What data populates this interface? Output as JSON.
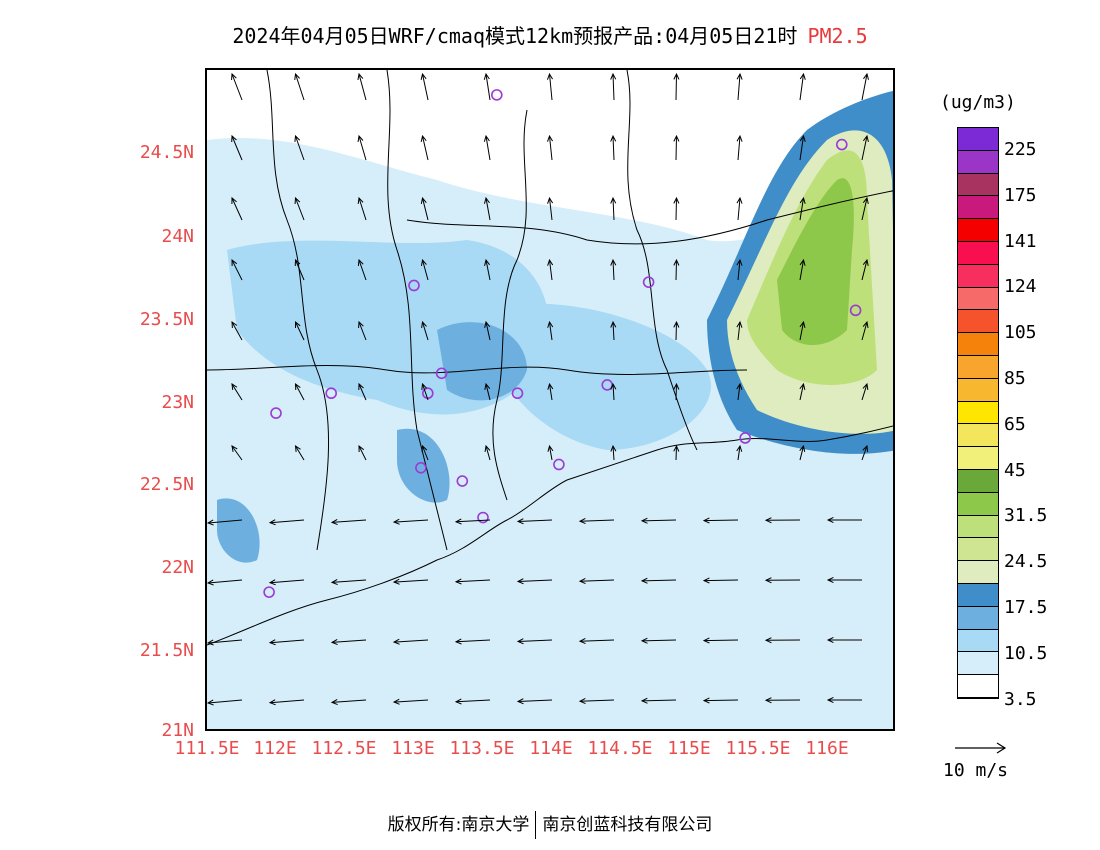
{
  "title": {
    "main": "2024年04月05日WRF/cmaq模式12km预报产品:04月05日21时",
    "variable": "PM2.5"
  },
  "map": {
    "lon_range": [
      111.5,
      116.5
    ],
    "lat_range": [
      21.0,
      25.0
    ],
    "lat_ticks": [
      "24.5N",
      "24N",
      "23.5N",
      "23N",
      "22.5N",
      "22N",
      "21.5N",
      "21N"
    ],
    "lon_ticks": [
      "111.5E",
      "112E",
      "112.5E",
      "113E",
      "113.5E",
      "114E",
      "114.5E",
      "115E",
      "115.5E",
      "116E"
    ],
    "stations": [
      {
        "lon": 113.6,
        "lat": 24.85
      },
      {
        "lon": 116.1,
        "lat": 24.55
      },
      {
        "lon": 113.0,
        "lat": 23.7
      },
      {
        "lon": 114.7,
        "lat": 23.72
      },
      {
        "lon": 116.2,
        "lat": 23.55
      },
      {
        "lon": 113.2,
        "lat": 23.17
      },
      {
        "lon": 112.4,
        "lat": 23.05
      },
      {
        "lon": 113.1,
        "lat": 23.05
      },
      {
        "lon": 113.75,
        "lat": 23.05
      },
      {
        "lon": 114.4,
        "lat": 23.1
      },
      {
        "lon": 112.0,
        "lat": 22.93
      },
      {
        "lon": 115.4,
        "lat": 22.78
      },
      {
        "lon": 113.05,
        "lat": 22.6
      },
      {
        "lon": 113.35,
        "lat": 22.52
      },
      {
        "lon": 114.05,
        "lat": 22.62
      },
      {
        "lon": 113.5,
        "lat": 22.3
      },
      {
        "lon": 111.95,
        "lat": 21.85
      }
    ],
    "station_color": "#9b3bd6"
  },
  "colorbar": {
    "unit": "(ug/m3)",
    "colors": [
      "#7b2ad6",
      "#9a35c8",
      "#a83260",
      "#c9197c",
      "#f40000",
      "#f80f50",
      "#f72f5f",
      "#f76a6a",
      "#f5532b",
      "#f5820a",
      "#f7a52c",
      "#f7b830",
      "#ffe600",
      "#f3e65c",
      "#f0f07a",
      "#6aa83a",
      "#8ec84a",
      "#bee07a",
      "#cfe592",
      "#deecc0",
      "#3f8ec9",
      "#6db0e0",
      "#a8d9f5",
      "#d6eef9",
      "#ffffff"
    ],
    "labels": [
      "225",
      "175",
      "141",
      "124",
      "105",
      "85",
      "65",
      "45",
      "31.5",
      "24.5",
      "17.5",
      "10.5",
      "3.5"
    ]
  },
  "reference_vector": {
    "label": "10 m/s"
  },
  "footer": {
    "left": "版权所有:南京大学",
    "right": "南京创蓝科技有限公司"
  }
}
